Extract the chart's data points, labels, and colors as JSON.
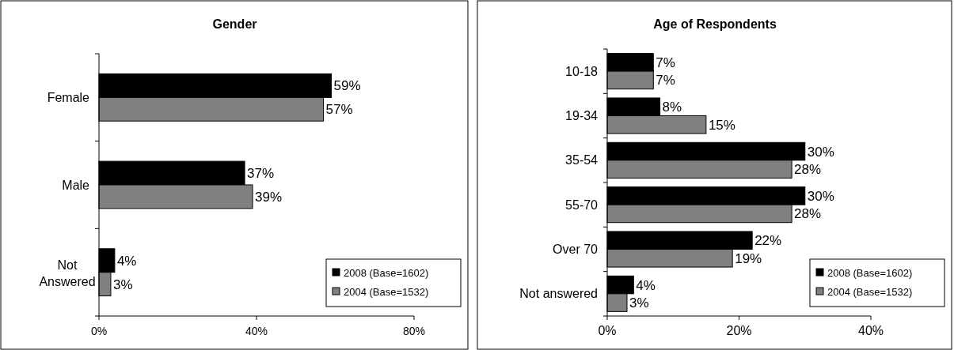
{
  "chart_data": [
    {
      "type": "bar",
      "orientation": "horizontal",
      "title": "Gender",
      "categories": [
        "Female",
        "Male",
        "Not\nAnswered"
      ],
      "series": [
        {
          "name": "2008 (Base=1602)",
          "color": "#000000",
          "values": [
            59,
            37,
            4
          ],
          "value_labels": [
            "59%",
            "37%",
            "4%"
          ]
        },
        {
          "name": "2004 (Base=1532)",
          "color": "#808080",
          "values": [
            57,
            39,
            3
          ],
          "value_labels": [
            "57%",
            "39%",
            "3%"
          ]
        }
      ],
      "xlim": [
        0,
        80
      ],
      "xticks": [
        {
          "value": 0,
          "label": "0%"
        },
        {
          "value": 40,
          "label": "40%"
        },
        {
          "value": 80,
          "label": "80%"
        }
      ],
      "legend": "bottom right",
      "grid": false
    },
    {
      "type": "bar",
      "orientation": "horizontal",
      "title": "Age of Respondents",
      "categories": [
        "10-18",
        "19-34",
        "35-54",
        "55-70",
        "Over 70",
        "Not answered"
      ],
      "series": [
        {
          "name": "2008 (Base=1602)",
          "color": "#000000",
          "values": [
            7,
            8,
            30,
            30,
            22,
            4
          ],
          "value_labels": [
            "7%",
            "8%",
            "30%",
            "30%",
            "22%",
            "4%"
          ]
        },
        {
          "name": "2004 (Base=1532)",
          "color": "#808080",
          "values": [
            7,
            15,
            28,
            28,
            19,
            3
          ],
          "value_labels": [
            "7%",
            "15%",
            "28%",
            "28%",
            "19%",
            "3%"
          ]
        }
      ],
      "xlim": [
        0,
        40
      ],
      "xticks": [
        {
          "value": 0,
          "label": "0%"
        },
        {
          "value": 20,
          "label": "20%"
        },
        {
          "value": 40,
          "label": "40%"
        }
      ],
      "legend": "bottom right",
      "grid": false
    }
  ]
}
